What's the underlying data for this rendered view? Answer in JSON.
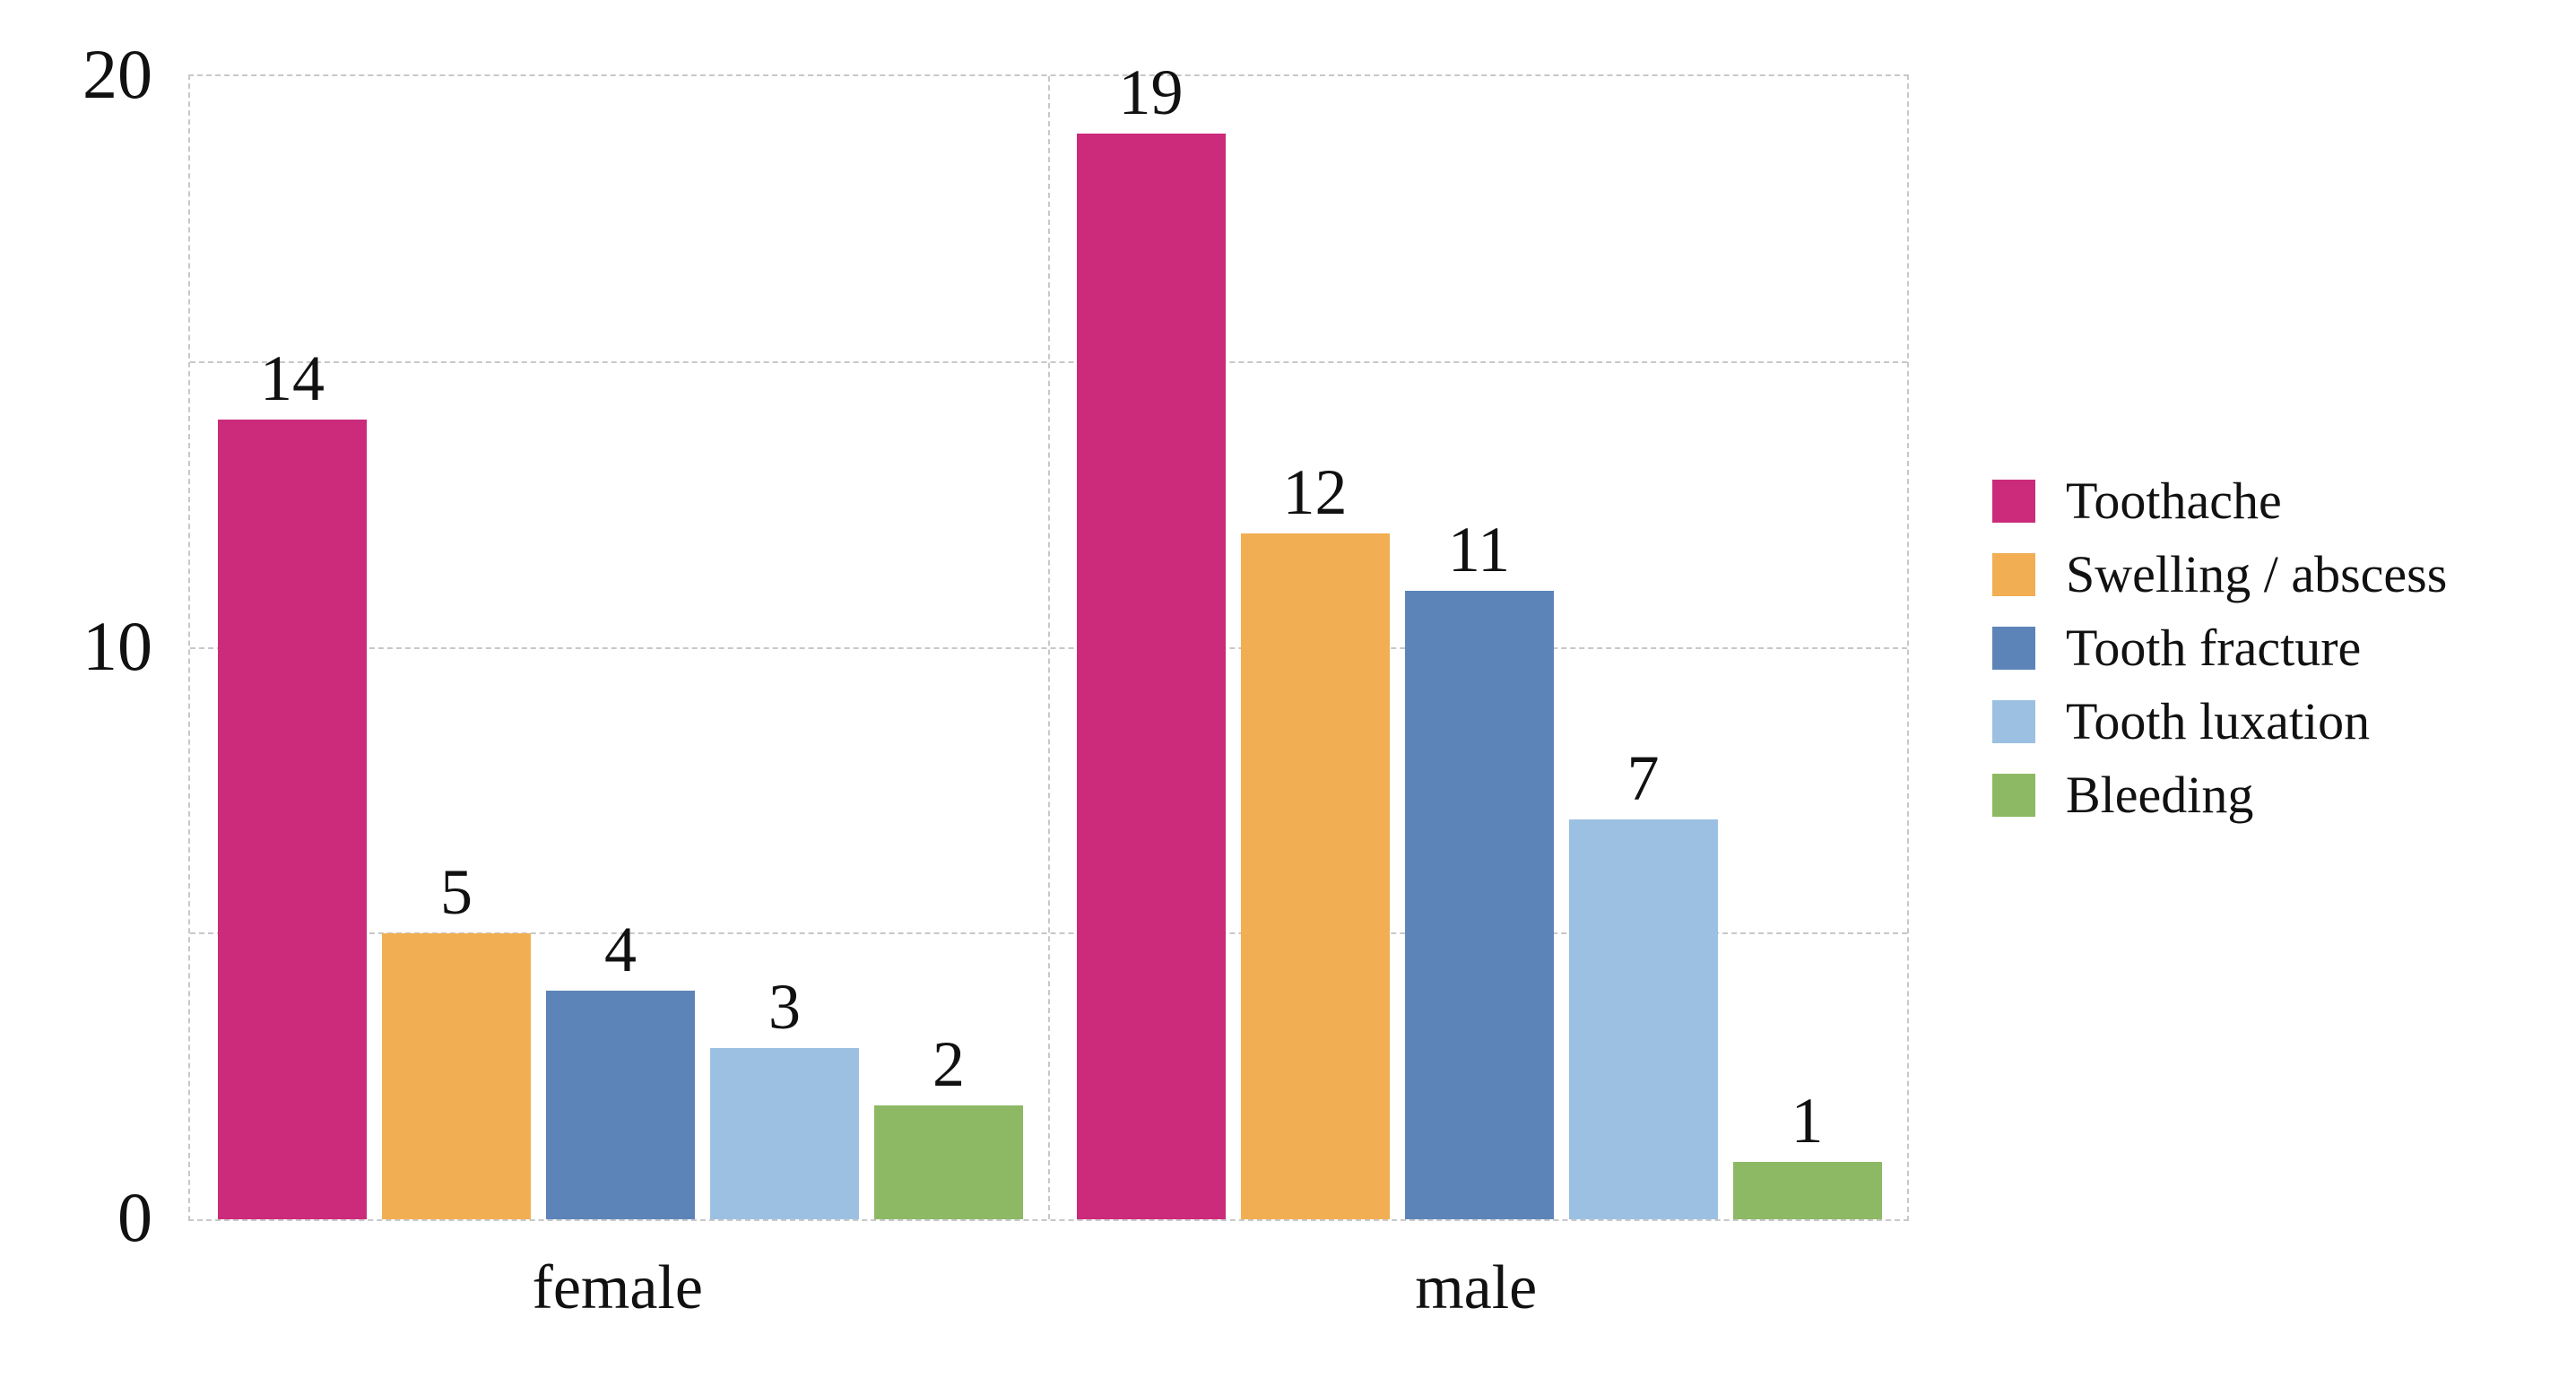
{
  "chart_data": {
    "type": "bar",
    "title": "",
    "xlabel": "",
    "ylabel": "",
    "categories": [
      "female",
      "male"
    ],
    "series": [
      {
        "name": "Toothache",
        "color": "#cb2b7a",
        "values": [
          14,
          19
        ]
      },
      {
        "name": "Swelling / abscess",
        "color": "#f1ae52",
        "values": [
          5,
          12
        ]
      },
      {
        "name": "Tooth fracture",
        "color": "#5d84b9",
        "values": [
          4,
          11
        ]
      },
      {
        "name": "Tooth luxation",
        "color": "#9cc0e1",
        "values": [
          3,
          7
        ]
      },
      {
        "name": "Bleeding",
        "color": "#8db964",
        "values": [
          2,
          1
        ]
      }
    ],
    "ylim": [
      0,
      20
    ],
    "yticks": [
      20,
      10,
      0
    ],
    "inner_gridline_values": [
      15,
      10,
      5
    ],
    "grid": true,
    "grid_style": "dashed",
    "grid_color": "#c8c8c8",
    "text_color": "#111111",
    "bar_value_labels": true,
    "legend_position": "right-middle"
  }
}
